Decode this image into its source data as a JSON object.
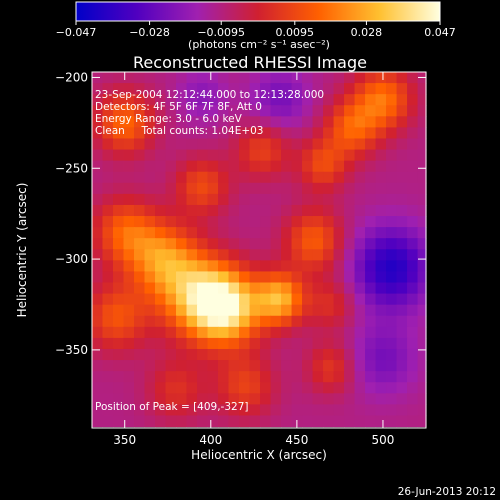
{
  "chart_data": {
    "type": "heatmap",
    "title": "Reconstructed RHESSI Image",
    "xlabel": "Heliocentric X (arcsec)",
    "ylabel": "Heliocentric Y (arcsec)",
    "xlim": [
      331,
      525
    ],
    "ylim": [
      -393,
      -197
    ],
    "x_ticks": [
      {
        "value": 350,
        "label": "350"
      },
      {
        "value": 400,
        "label": "400"
      },
      {
        "value": 450,
        "label": "450"
      },
      {
        "value": 500,
        "label": "500"
      }
    ],
    "y_ticks": [
      {
        "value": -200,
        "label": "−200"
      },
      {
        "value": -250,
        "label": "−250"
      },
      {
        "value": -300,
        "label": "−300"
      },
      {
        "value": -350,
        "label": "−350"
      }
    ],
    "colorbar": {
      "range": [
        -0.047,
        0.047
      ],
      "ticks": [
        {
          "value": -0.047,
          "label": "−0.047"
        },
        {
          "value": -0.028,
          "label": "−0.028"
        },
        {
          "value": -0.0095,
          "label": "−0.0095"
        },
        {
          "value": 0.0095,
          "label": "0.0095"
        },
        {
          "value": 0.028,
          "label": "0.028"
        },
        {
          "value": 0.047,
          "label": "0.047"
        }
      ],
      "units_label": "(photons cm⁻² s⁻¹ asec⁻²)",
      "colors": [
        "#0000c8",
        "#5000c0",
        "#a020b0",
        "#d02030",
        "#ff6000",
        "#ffc030",
        "#ffffe0"
      ]
    },
    "annotations": [
      "23-Sep-2004 12:12:44.000 to 12:13:28.000",
      "Detectors: 4F 5F 6F 7F 8F, Att 0",
      "Energy Range: 3.0 - 6.0 keV",
      "Clean     Total counts: 1.04E+03"
    ],
    "peak_label": "Position of Peak = [409,-327]",
    "peak": {
      "x": 409,
      "y": -327
    },
    "image_grid": {
      "x_start": 331,
      "dx": 6.1,
      "nx": 32,
      "y_start": -197,
      "dy": -6.1,
      "ny": 32,
      "sources": [
        {
          "x": 409,
          "y": -327,
          "amp": 0.047,
          "sigma": 14
        },
        {
          "x": 392,
          "y": -320,
          "amp": 0.035,
          "sigma": 16
        },
        {
          "x": 440,
          "y": -322,
          "amp": 0.038,
          "sigma": 10
        },
        {
          "x": 372,
          "y": -300,
          "amp": 0.03,
          "sigma": 14
        },
        {
          "x": 350,
          "y": -285,
          "amp": 0.024,
          "sigma": 13
        },
        {
          "x": 345,
          "y": -332,
          "amp": 0.022,
          "sigma": 13
        },
        {
          "x": 350,
          "y": -225,
          "amp": 0.026,
          "sigma": 12
        },
        {
          "x": 395,
          "y": -260,
          "amp": 0.02,
          "sigma": 11
        },
        {
          "x": 430,
          "y": -240,
          "amp": 0.018,
          "sigma": 11
        },
        {
          "x": 460,
          "y": -290,
          "amp": 0.024,
          "sigma": 12
        },
        {
          "x": 465,
          "y": -248,
          "amp": 0.02,
          "sigma": 10
        },
        {
          "x": 500,
          "y": -212,
          "amp": 0.028,
          "sigma": 12
        },
        {
          "x": 482,
          "y": -228,
          "amp": 0.024,
          "sigma": 11
        },
        {
          "x": 420,
          "y": -370,
          "amp": 0.018,
          "sigma": 12
        },
        {
          "x": 470,
          "y": -360,
          "amp": 0.016,
          "sigma": 10
        },
        {
          "x": 380,
          "y": -372,
          "amp": 0.014,
          "sigma": 12
        },
        {
          "x": 470,
          "y": -325,
          "amp": 0.014,
          "sigma": 10
        },
        {
          "x": 505,
          "y": -305,
          "amp": -0.03,
          "sigma": 16
        },
        {
          "x": 500,
          "y": -355,
          "amp": -0.014,
          "sigma": 14
        },
        {
          "x": 440,
          "y": -212,
          "amp": -0.014,
          "sigma": 12
        },
        {
          "x": 395,
          "y": -210,
          "amp": -0.01,
          "sigma": 10
        }
      ],
      "baseline": -0.01
    }
  },
  "footer_date": "26-Jun-2013 20:12"
}
